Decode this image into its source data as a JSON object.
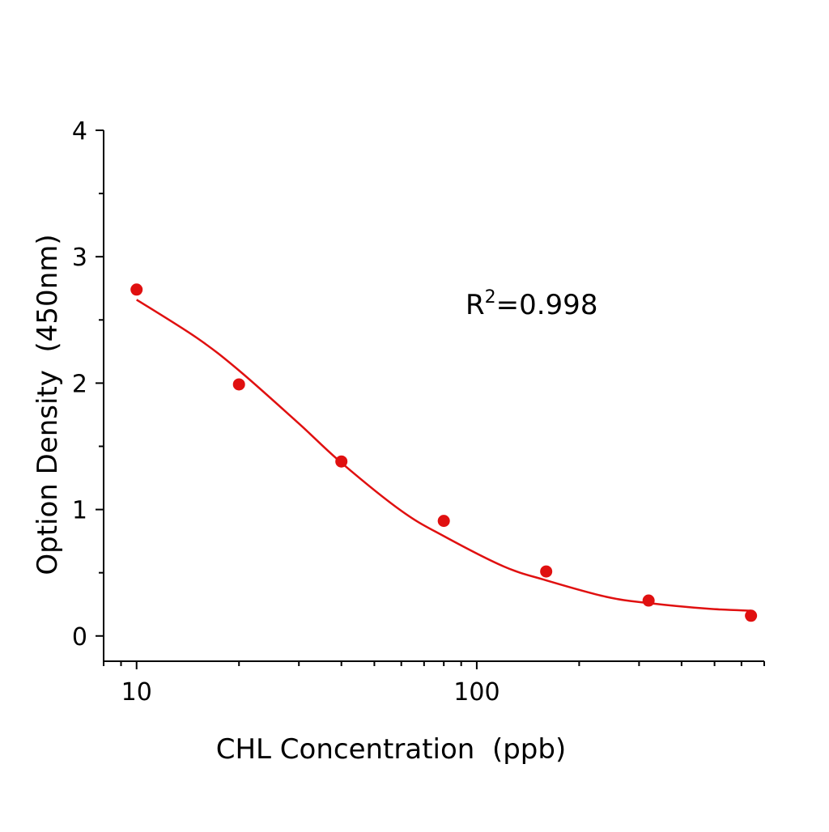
{
  "chart_data": {
    "type": "scatter",
    "title": "",
    "xlabel": "CHL Concentration  (ppb)",
    "ylabel": "Option Density  (450nm)",
    "xscale": "log",
    "xlim": [
      8,
      700
    ],
    "ylim": [
      -0.2,
      4
    ],
    "x_ticks": [
      10,
      100
    ],
    "x_tick_labels": [
      "10",
      "100"
    ],
    "y_ticks": [
      0,
      1,
      2,
      3,
      4
    ],
    "y_tick_labels": [
      "0",
      "1",
      "2",
      "3",
      "4"
    ],
    "grid": false,
    "legend": "none",
    "color": "#e01010",
    "annotation": {
      "base": "R",
      "sup": "2",
      "rest": "=0.998"
    },
    "points": {
      "x": [
        10,
        20,
        40,
        80,
        160,
        320,
        640
      ],
      "y": [
        2.74,
        1.99,
        1.38,
        0.91,
        0.51,
        0.28,
        0.16
      ]
    },
    "fit_curve": {
      "x": [
        10,
        15,
        20,
        30,
        40,
        60,
        80,
        120,
        160,
        240,
        320,
        480,
        640
      ],
      "y": [
        2.66,
        2.36,
        2.1,
        1.68,
        1.37,
        0.99,
        0.79,
        0.55,
        0.44,
        0.31,
        0.26,
        0.215,
        0.2
      ]
    }
  }
}
